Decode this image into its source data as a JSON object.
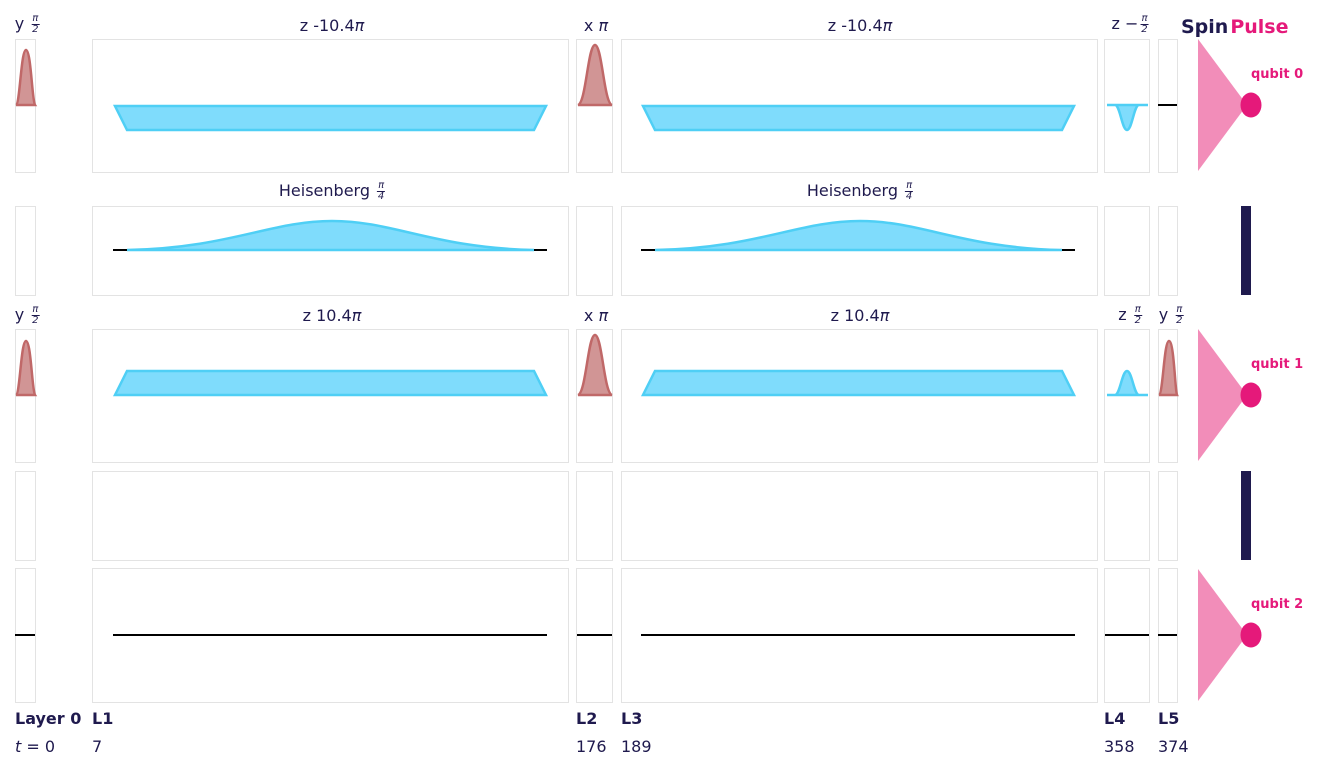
{
  "brand": {
    "spin": "Spin",
    "pulse": "Pulse"
  },
  "colors": {
    "rf_pulse_fill": "#c98282",
    "rf_pulse_stroke": "#c06868",
    "z_pulse_fill": "#7fdcfc",
    "z_pulse_stroke": "#4fcff5",
    "baseline": "#000000",
    "text": "#1f1a4e",
    "accent": "#e5197a",
    "qubit_cone": "#f28db9",
    "coupler_bar": "#1f1a4e",
    "panel_border": "#e3e3e3"
  },
  "qubits": [
    {
      "label": "qubit 0"
    },
    {
      "label": "qubit 1"
    },
    {
      "label": "qubit 2"
    }
  ],
  "gate_labels": {
    "q0_l0_axis": "y",
    "q0_l0_num": "π",
    "q0_l0_den": "2",
    "q0_l1_text": "z -10.4",
    "q0_l1_pi": "π",
    "q0_l2_axis": "x",
    "q0_l2_pi": "π",
    "q0_l3_text": "z -10.4",
    "q0_l3_pi": "π",
    "q0_l4_axis": "z",
    "q0_l4_sign": "−",
    "q0_l4_num": "π",
    "q0_l4_den": "2",
    "c01_l1_text": "Heisenberg",
    "c01_l1_num": "π",
    "c01_l1_den": "4",
    "c01_l3_text": "Heisenberg",
    "c01_l3_num": "π",
    "c01_l3_den": "4",
    "q1_l0_axis": "y",
    "q1_l0_num": "π",
    "q1_l0_den": "2",
    "q1_l1_text": "z 10.4",
    "q1_l1_pi": "π",
    "q1_l2_axis": "x",
    "q1_l2_pi": "π",
    "q1_l3_text": "z 10.4",
    "q1_l3_pi": "π",
    "q1_l4_axis": "z",
    "q1_l4_num": "π",
    "q1_l4_den": "2",
    "q1_l5_axis": "y",
    "q1_l5_num": "π",
    "q1_l5_den": "2"
  },
  "layers": [
    {
      "label": "Layer 0",
      "time_prefix": "t",
      "time_eq": " = ",
      "time": "0"
    },
    {
      "label": "L1",
      "time": "7"
    },
    {
      "label": "L2",
      "time": "176"
    },
    {
      "label": "L3",
      "time": "189"
    },
    {
      "label": "L4",
      "time": "358"
    },
    {
      "label": "L5",
      "time": "374"
    }
  ]
}
